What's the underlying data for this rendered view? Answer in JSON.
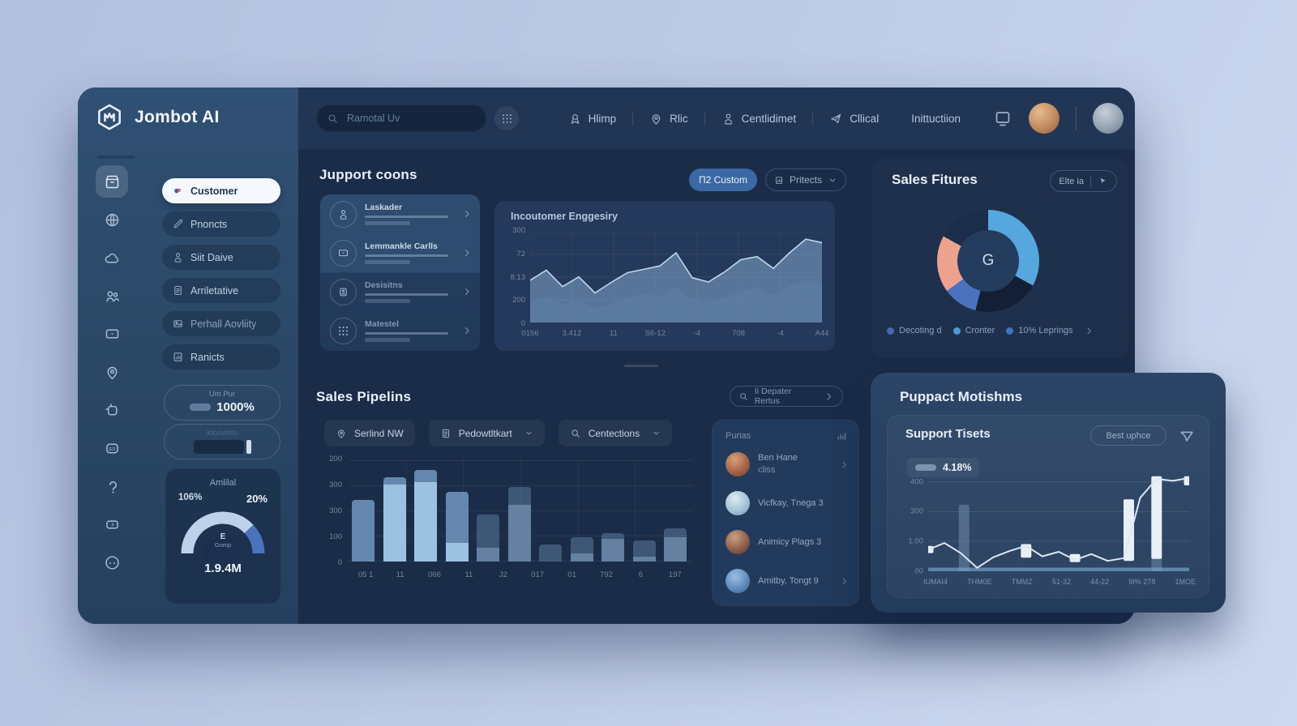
{
  "brand": {
    "name": "Jombot AI"
  },
  "topbar": {
    "search_placeholder": "Ramotal Uv",
    "nav_items": [
      {
        "label": "Hlimp"
      },
      {
        "label": "Rlic"
      },
      {
        "label": "Centlidimet"
      },
      {
        "label": "Cllical"
      },
      {
        "label": "Inittuctiion"
      }
    ]
  },
  "sidebar": {
    "menu_items": [
      {
        "label": "Customer",
        "active": true,
        "icon": "customer"
      },
      {
        "label": "Pnoncts",
        "icon": "edit"
      },
      {
        "label": "Siit Daive",
        "icon": "person"
      },
      {
        "label": "Arriletative",
        "icon": "doc"
      },
      {
        "label": "Perhall Aovliity",
        "icon": "image",
        "dim": true
      },
      {
        "label": "Ranicts",
        "icon": "chartdoc"
      }
    ],
    "stat_pill_1": {
      "label": "Um Pur",
      "value": "1000%"
    },
    "stat_pill_2": {
      "label": "ktoowlsh"
    },
    "gauge_card": {
      "title": "Amlilal",
      "left_value": "106%",
      "right_value": "20%",
      "center_top": "E",
      "center_sub": "Gomp",
      "bottom_value": "1.9.4M",
      "segments": [
        {
          "color": "#bdd2ea",
          "pct": 76
        },
        {
          "color": "#4a72bd",
          "pct": 24
        }
      ]
    }
  },
  "support_section": {
    "title": "Jupport coons",
    "primary_button": "П2 Custom",
    "secondary_button": "Pritects"
  },
  "list_card": {
    "items": [
      {
        "title": "Laskader",
        "icon": "person"
      },
      {
        "title": "Lemmankle Carlls",
        "icon": "screen"
      },
      {
        "title": "Desisitns",
        "icon": "badge2",
        "dim": true
      },
      {
        "title": "Matestel",
        "icon": "grid",
        "dim": true
      }
    ]
  },
  "sales_fitures": {
    "title": "Sales Fitures",
    "button": "Elte ia",
    "center_label": "G",
    "legend": [
      {
        "label": "Decoting d",
        "color": "#4a67b0"
      },
      {
        "label": "Cronter",
        "color": "#4b9ad4"
      },
      {
        "label": "10% Leprings",
        "color": "#3c76c6"
      }
    ]
  },
  "pipeline_section": {
    "title": "Sales Pipelins",
    "link_button": "Ii Depater Rertus",
    "filters": [
      {
        "label": "Serlind NW",
        "icon": "pin",
        "chevron": false
      },
      {
        "label": "Pedowtltkart",
        "icon": "doc",
        "chevron": true
      },
      {
        "label": "Centections",
        "icon": "search",
        "chevron": true
      }
    ]
  },
  "people_card": {
    "title": "Purias",
    "people": [
      {
        "name": "Ben Hane",
        "sub": "cliss",
        "chevron": true
      },
      {
        "name": "Vicfkay, Tnega 3"
      },
      {
        "name": "Animicy Plags 3"
      },
      {
        "name": "Amitby, Tongt 9",
        "chevron": true
      }
    ]
  },
  "support_panel": {
    "title": "Puppact Motishms",
    "card_title": "Support Tisets",
    "button": "Best uphce",
    "badge": "4.18%"
  },
  "chart_data": [
    {
      "id": "engagement_area",
      "type": "area",
      "title": "Incoutomer Enggesiry",
      "yticks": [
        "300",
        "72",
        "8.13",
        "200",
        "0"
      ],
      "xticks": [
        "0156",
        "3.412",
        "11",
        "S6-12",
        "-4",
        "708",
        "-4",
        "A44"
      ],
      "ylim": [
        0,
        430
      ],
      "grid": true,
      "series": [
        {
          "name": "engagement",
          "values": [
            200,
            248,
            170,
            216,
            140,
            190,
            236,
            252,
            268,
            330,
            212,
            192,
            240,
            298,
            312,
            256,
            330,
            395,
            378
          ]
        },
        {
          "name": "baseline",
          "values": [
            95,
            122,
            86,
            106,
            66,
            86,
            116,
            136,
            126,
            166,
            106,
            94,
            120,
            150,
            166,
            132,
            172,
            200,
            190
          ]
        }
      ]
    },
    {
      "id": "sales_donut",
      "type": "pie",
      "title": "Sales Fitures",
      "center_label": "G",
      "slices": [
        {
          "label": "Cronter",
          "pct": 33,
          "color": "#55a7de"
        },
        {
          "label": "segment-dark-1",
          "pct": 21,
          "color": "#141f36"
        },
        {
          "label": "Decoting d",
          "pct": 11,
          "color": "#4a72bd"
        },
        {
          "label": "10% Leprings",
          "pct": 18,
          "color": "#eda28d"
        },
        {
          "label": "segment-dark-2",
          "pct": 17,
          "color": "#1b2d4b"
        }
      ]
    },
    {
      "id": "pipeline_bars",
      "type": "bar",
      "title": "Sales Pipelins",
      "yticks": [
        "200",
        "300",
        "300",
        "100",
        "0"
      ],
      "xticks": [
        "05 1",
        "11",
        "066",
        "11",
        "J2",
        "017",
        "01",
        "792",
        "6",
        "197"
      ],
      "ylim": [
        0,
        420
      ],
      "grid": true,
      "bars": [
        {
          "value": 255,
          "split": 0,
          "tone": "light"
        },
        {
          "value": 350,
          "split": 318,
          "tone": "light"
        },
        {
          "value": 380,
          "split": 330,
          "tone": "light"
        },
        {
          "value": 290,
          "split": 78,
          "tone": "light"
        },
        {
          "value": 195,
          "split": 58,
          "tone": "muted"
        },
        {
          "value": 310,
          "split": 235,
          "tone": "muted"
        },
        {
          "value": 70,
          "split": 0,
          "tone": "muted"
        },
        {
          "value": 100,
          "split": 35,
          "tone": "muted"
        },
        {
          "value": 118,
          "split": 95,
          "tone": "muted"
        },
        {
          "value": 88,
          "split": 20,
          "tone": "muted"
        },
        {
          "value": 138,
          "split": 100,
          "tone": "muted"
        }
      ]
    },
    {
      "id": "support_tickets",
      "type": "line",
      "title": "Support Tisets",
      "badge": "4.18%",
      "yticks": [
        "400",
        "300",
        "1.00",
        "00"
      ],
      "xticks": [
        "IUMAI4",
        "THM0E",
        "TMMZ",
        "51-32",
        "44-22",
        "9I% 278",
        "1MOE"
      ],
      "ylim": [
        0,
        430
      ],
      "grid": true,
      "line": [
        95,
        125,
        80,
        15,
        62,
        90,
        112,
        66,
        86,
        50,
        76,
        46,
        58,
        325,
        408,
        400,
        412
      ],
      "bars": [
        {
          "x": 0,
          "y0": 80,
          "y1": 112,
          "style": "solid"
        },
        {
          "x": 2.2,
          "y0": 0,
          "y1": 295,
          "style": "ghost"
        },
        {
          "x": 6,
          "y0": 60,
          "y1": 120,
          "style": "solid"
        },
        {
          "x": 9,
          "y0": 40,
          "y1": 76,
          "style": "solid"
        },
        {
          "x": 12.3,
          "y0": 46,
          "y1": 318,
          "style": "solid"
        },
        {
          "x": 14,
          "y0": 0,
          "y1": 60,
          "style": "ghost"
        },
        {
          "x": 14,
          "y0": 55,
          "y1": 420,
          "style": "solid"
        },
        {
          "x": 16,
          "y0": 380,
          "y1": 420,
          "style": "solid"
        }
      ]
    }
  ]
}
